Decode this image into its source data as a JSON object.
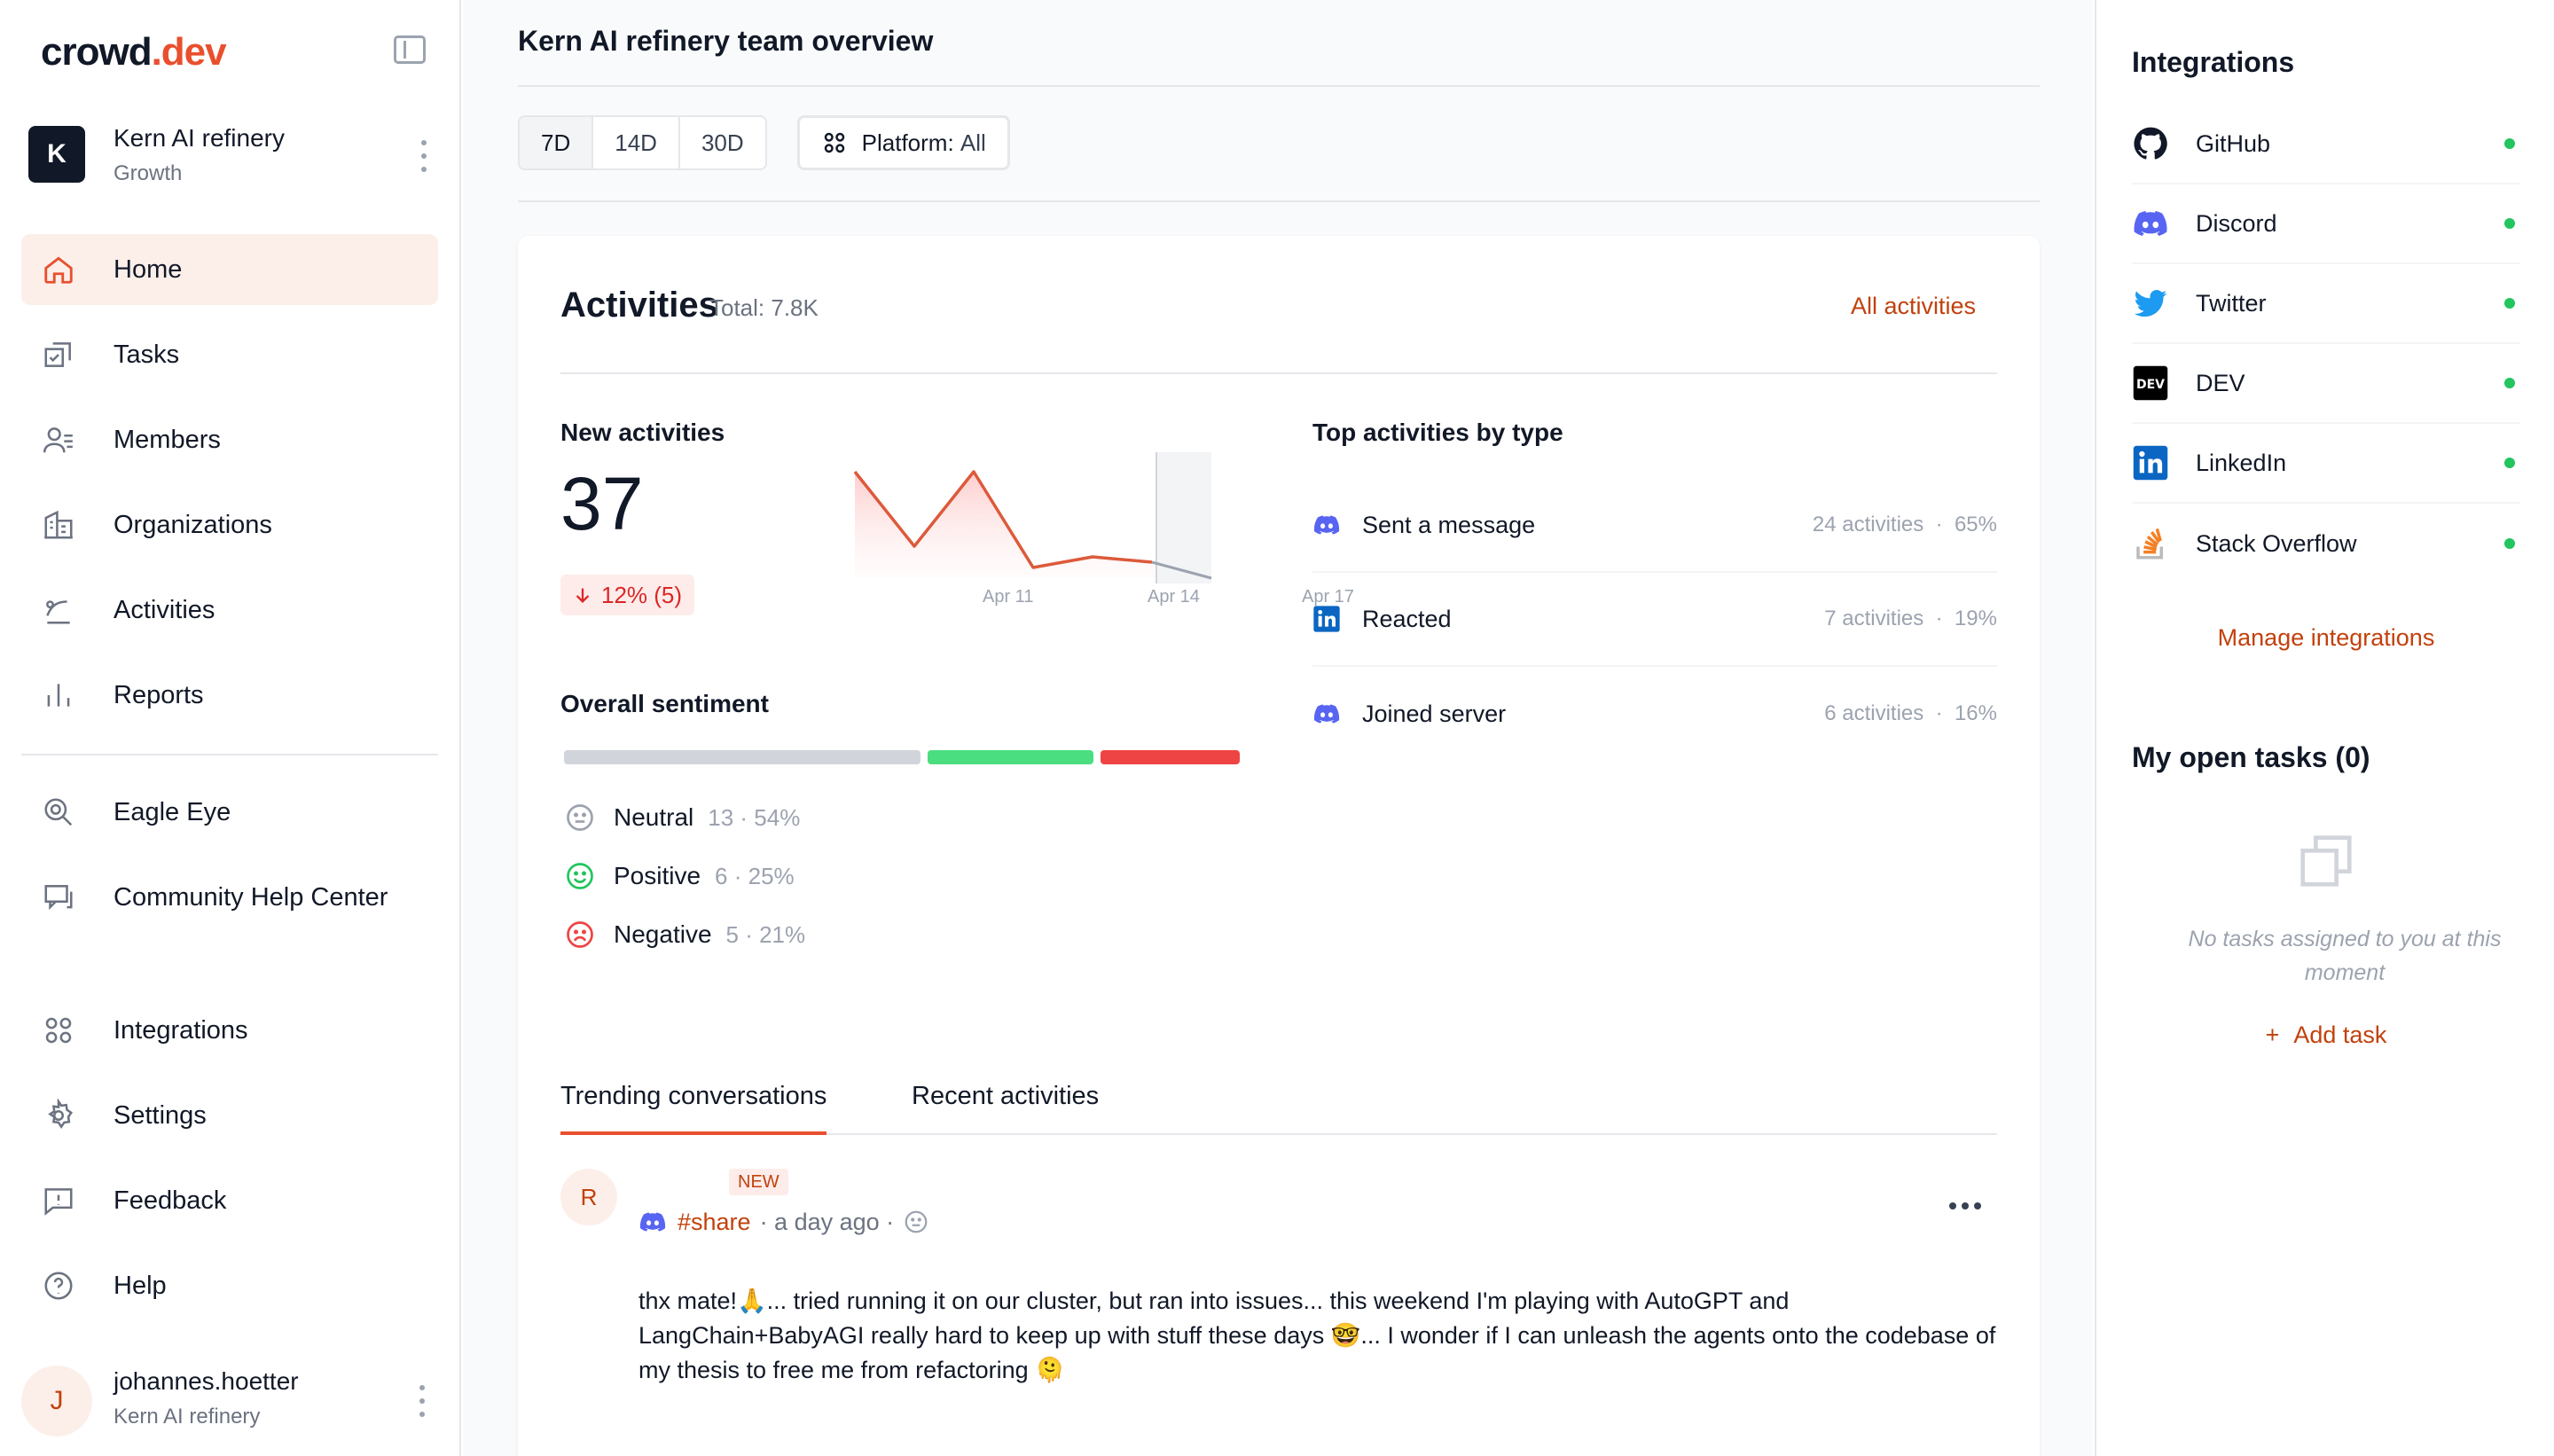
{
  "app": {
    "logo_main": "crowd",
    "logo_accent": ".dev",
    "page_title": "Kern AI refinery team overview"
  },
  "workspace": {
    "initial": "K",
    "name": "Kern AI refinery",
    "plan": "Growth"
  },
  "nav": {
    "primary": [
      {
        "label": "Home",
        "icon": "home-icon",
        "active": true
      },
      {
        "label": "Tasks",
        "icon": "tasks-icon"
      },
      {
        "label": "Members",
        "icon": "members-icon"
      },
      {
        "label": "Organizations",
        "icon": "organizations-icon"
      },
      {
        "label": "Activities",
        "icon": "activities-icon"
      },
      {
        "label": "Reports",
        "icon": "reports-icon"
      }
    ],
    "secondary": [
      {
        "label": "Eagle Eye",
        "icon": "eagle-eye-icon"
      },
      {
        "label": "Community Help Center",
        "icon": "help-center-icon"
      }
    ],
    "bottom": [
      {
        "label": "Integrations",
        "icon": "integrations-icon"
      },
      {
        "label": "Settings",
        "icon": "settings-icon"
      },
      {
        "label": "Feedback",
        "icon": "feedback-icon"
      },
      {
        "label": "Help",
        "icon": "help-icon"
      }
    ]
  },
  "user": {
    "initial": "J",
    "name": "johannes.hoetter",
    "org": "Kern AI refinery"
  },
  "filters": {
    "periods": [
      "7D",
      "14D",
      "30D"
    ],
    "active_period": "7D",
    "platform_label": "Platform:",
    "platform_value": "All"
  },
  "activities": {
    "title": "Activities",
    "total": "Total: 7.8K",
    "all_link": "All activities",
    "new_label": "New activities",
    "new_count": "37",
    "delta": "12% (5)",
    "delta_direction": "down",
    "sparkline": {
      "ticks": [
        "Apr 11",
        "Apr 14",
        "Apr 17"
      ],
      "values": [
        10,
        3,
        10,
        1,
        2,
        1.5,
        0
      ]
    },
    "sentiment_label": "Overall sentiment",
    "sentiment": [
      {
        "label": "Neutral",
        "count": "13",
        "percent": "54%",
        "fraction": 0.54,
        "color": "#d1d5db",
        "icon": "neutral-face-icon"
      },
      {
        "label": "Positive",
        "count": "6",
        "percent": "25%",
        "fraction": 0.25,
        "color": "#4ade80",
        "icon": "smile-face-icon"
      },
      {
        "label": "Negative",
        "count": "5",
        "percent": "21%",
        "fraction": 0.21,
        "color": "#ef4444",
        "icon": "frown-face-icon"
      }
    ],
    "top_types_label": "Top activities by type",
    "top_types": [
      {
        "label": "Sent a message",
        "count": "24 activities",
        "percent": "65%",
        "icon": "discord-icon"
      },
      {
        "label": "Reacted",
        "count": "7 activities",
        "percent": "19%",
        "icon": "linkedin-icon"
      },
      {
        "label": "Joined server",
        "count": "6 activities",
        "percent": "16%",
        "icon": "discord-icon"
      }
    ]
  },
  "tabs": [
    {
      "label": "Trending conversations",
      "active": true
    },
    {
      "label": "Recent activities",
      "active": false
    }
  ],
  "conversation": {
    "initial": "R",
    "badge": "NEW",
    "channel": "#share",
    "time": "· a day ago ·",
    "body": "thx mate!🙏... tried running it on our cluster, but ran into issues... this weekend I'm playing with AutoGPT and LangChain+BabyAGI really hard to keep up with stuff these days 🤓... I wonder if I can unleash the agents onto the codebase of my thesis to free me from refactoring 🫠"
  },
  "integrations": {
    "title": "Integrations",
    "items": [
      {
        "name": "GitHub",
        "icon": "github-icon",
        "status": "connected"
      },
      {
        "name": "Discord",
        "icon": "discord-icon",
        "status": "connected"
      },
      {
        "name": "Twitter",
        "icon": "twitter-icon",
        "status": "connected"
      },
      {
        "name": "DEV",
        "icon": "dev-icon",
        "status": "connected"
      },
      {
        "name": "LinkedIn",
        "icon": "linkedin-icon",
        "status": "connected"
      },
      {
        "name": "Stack Overflow",
        "icon": "stackoverflow-icon",
        "status": "connected"
      }
    ],
    "manage_link": "Manage integrations"
  },
  "tasks": {
    "title": "My open tasks (0)",
    "empty_text": "No tasks assigned to you at this moment",
    "add_label": "Add task"
  },
  "colors": {
    "brand": "#e94f2e",
    "link": "#c2410c",
    "status_ok": "#22c55e"
  }
}
